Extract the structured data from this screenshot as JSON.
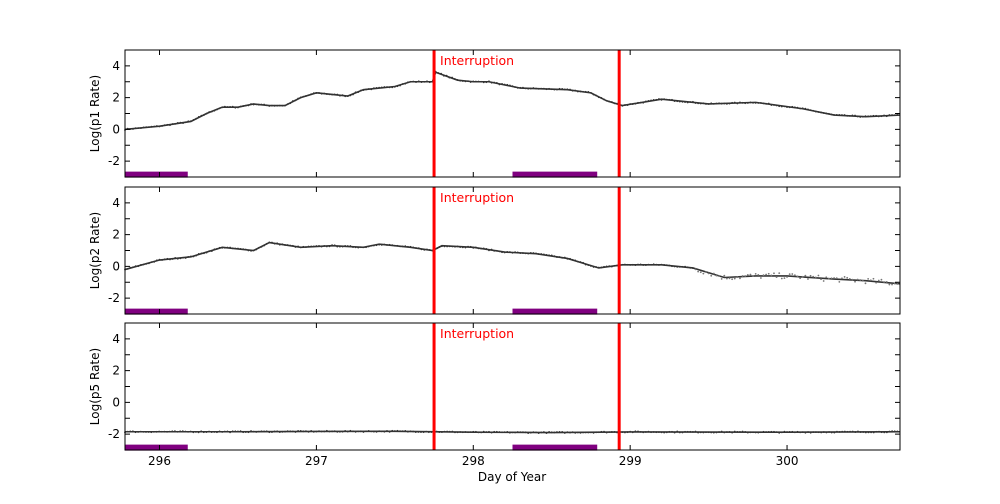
{
  "chart_data": {
    "type": "scatter",
    "xlabel": "Day of Year",
    "xlim": [
      295.78,
      300.72
    ],
    "xticks": [
      296,
      297,
      298,
      299,
      300
    ],
    "annotation": "Interruption",
    "interruption_days": [
      297.75,
      298.93
    ],
    "interruption_color": "#ff0000",
    "highlight_color": "#800080",
    "highlight_level": -2.85,
    "highlight_spans": [
      [
        295.78,
        296.18
      ],
      [
        298.25,
        298.79
      ]
    ],
    "marker_color": "#333333",
    "panels": [
      {
        "ylabel": "Log(p1 Rate)",
        "ylim": [
          -3,
          5
        ],
        "yticks": [
          -2,
          0,
          2,
          4
        ],
        "x": [
          295.78,
          296.0,
          296.2,
          296.3,
          296.4,
          296.5,
          296.6,
          296.7,
          296.8,
          296.9,
          297.0,
          297.1,
          297.2,
          297.3,
          297.5,
          297.6,
          297.74,
          297.76,
          297.9,
          298.0,
          298.1,
          298.3,
          298.6,
          298.75,
          298.85,
          298.95,
          299.2,
          299.5,
          299.8,
          300.1,
          300.3,
          300.5,
          300.72
        ],
        "y": [
          0.0,
          0.2,
          0.5,
          1.0,
          1.4,
          1.4,
          1.6,
          1.5,
          1.5,
          2.0,
          2.3,
          2.2,
          2.1,
          2.5,
          2.7,
          3.0,
          3.0,
          3.6,
          3.1,
          3.0,
          3.0,
          2.6,
          2.5,
          2.3,
          1.8,
          1.5,
          1.9,
          1.6,
          1.7,
          1.3,
          0.9,
          0.8,
          0.9
        ]
      },
      {
        "ylabel": "Log(p2 Rate)",
        "ylim": [
          -3,
          5
        ],
        "yticks": [
          -2,
          0,
          2,
          4
        ],
        "x": [
          295.78,
          296.0,
          296.2,
          296.4,
          296.6,
          296.7,
          296.9,
          297.1,
          297.3,
          297.4,
          297.6,
          297.74,
          297.8,
          298.0,
          298.2,
          298.4,
          298.6,
          298.8,
          298.95,
          299.2,
          299.4,
          299.6,
          299.8,
          300.0,
          300.3,
          300.5,
          300.72
        ],
        "y": [
          -0.2,
          0.4,
          0.6,
          1.2,
          1.0,
          1.5,
          1.2,
          1.3,
          1.2,
          1.4,
          1.2,
          1.0,
          1.3,
          1.2,
          0.9,
          0.8,
          0.5,
          -0.1,
          0.1,
          0.1,
          -0.1,
          -0.7,
          -0.6,
          -0.6,
          -0.8,
          -0.9,
          -1.1
        ]
      },
      {
        "ylabel": "Log(p5 Rate)",
        "ylim": [
          -3,
          5
        ],
        "yticks": [
          -2,
          0,
          2,
          4
        ],
        "x": [
          295.78,
          296.5,
          297.0,
          297.5,
          298.0,
          298.5,
          299.0,
          299.5,
          300.0,
          300.72
        ],
        "y": [
          -1.85,
          -1.85,
          -1.83,
          -1.82,
          -1.88,
          -1.9,
          -1.86,
          -1.87,
          -1.88,
          -1.85
        ]
      }
    ]
  }
}
